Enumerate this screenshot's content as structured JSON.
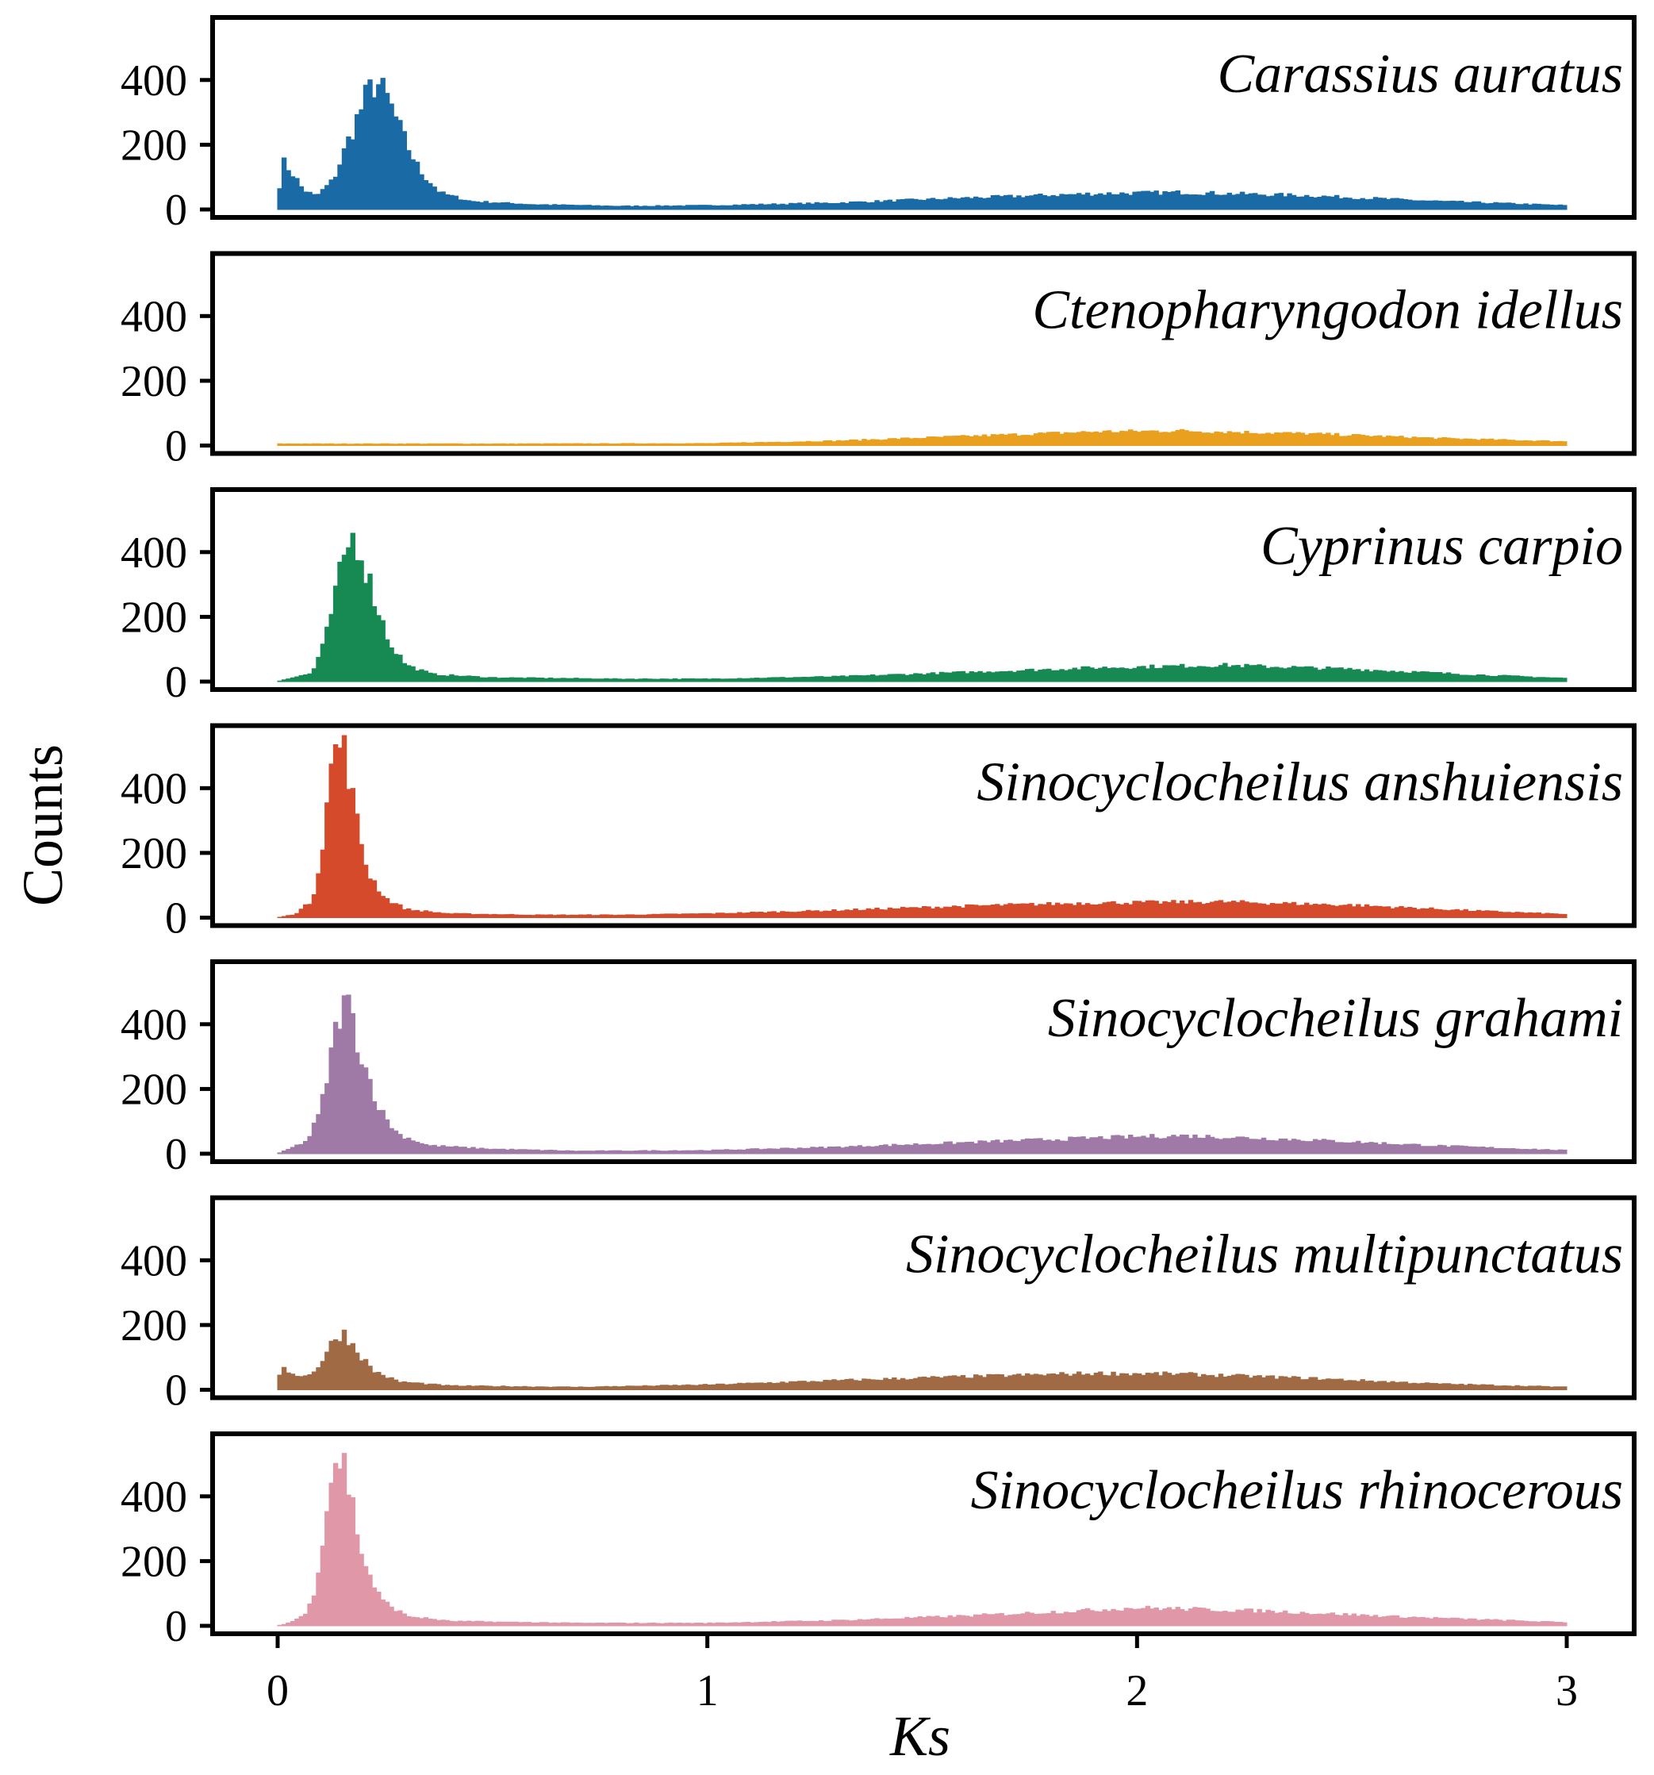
{
  "chart_data": {
    "type": "bar",
    "layout": "small-multiples",
    "xlabel": "Ks",
    "ylabel": "Counts",
    "xlim": [
      0,
      3
    ],
    "xticks": [
      0,
      1,
      2,
      3
    ],
    "yticks": [
      0,
      200,
      400
    ],
    "ylim": [
      0,
      560
    ],
    "bin_width": 0.01,
    "grid": false,
    "legend": "none",
    "panels": [
      {
        "name": "Carassius auratus",
        "color": "#1a6aa6",
        "profile": [
          [
            0,
            0
          ],
          [
            0.01,
            150
          ],
          [
            0.03,
            120
          ],
          [
            0.06,
            60
          ],
          [
            0.09,
            40
          ],
          [
            0.13,
            90
          ],
          [
            0.17,
            230
          ],
          [
            0.21,
            360
          ],
          [
            0.23,
            395
          ],
          [
            0.26,
            330
          ],
          [
            0.29,
            230
          ],
          [
            0.33,
            120
          ],
          [
            0.38,
            50
          ],
          [
            0.45,
            25
          ],
          [
            0.6,
            15
          ],
          [
            0.8,
            10
          ],
          [
            1.0,
            12
          ],
          [
            1.3,
            20
          ],
          [
            1.6,
            35
          ],
          [
            1.9,
            48
          ],
          [
            2.1,
            52
          ],
          [
            2.4,
            42
          ],
          [
            2.7,
            25
          ],
          [
            3.0,
            12
          ]
        ]
      },
      {
        "name": "Ctenopharyngodon idellus",
        "color": "#e8a01e",
        "profile": [
          [
            0,
            5
          ],
          [
            0.5,
            5
          ],
          [
            1.0,
            6
          ],
          [
            1.3,
            14
          ],
          [
            1.6,
            28
          ],
          [
            1.9,
            42
          ],
          [
            2.1,
            45
          ],
          [
            2.4,
            36
          ],
          [
            2.7,
            22
          ],
          [
            3.0,
            12
          ]
        ]
      },
      {
        "name": "Cyprinus carpio",
        "color": "#178a54",
        "profile": [
          [
            0,
            0
          ],
          [
            0.02,
            8
          ],
          [
            0.08,
            25
          ],
          [
            0.11,
            120
          ],
          [
            0.14,
            300
          ],
          [
            0.17,
            450
          ],
          [
            0.19,
            420
          ],
          [
            0.22,
            280
          ],
          [
            0.26,
            120
          ],
          [
            0.3,
            50
          ],
          [
            0.36,
            22
          ],
          [
            0.5,
            12
          ],
          [
            0.8,
            8
          ],
          [
            1.0,
            8
          ],
          [
            1.3,
            15
          ],
          [
            1.6,
            28
          ],
          [
            1.9,
            42
          ],
          [
            2.2,
            50
          ],
          [
            2.5,
            38
          ],
          [
            2.8,
            20
          ],
          [
            3.0,
            10
          ]
        ]
      },
      {
        "name": "Sinocyclocheilus anshuiensis",
        "color": "#d44a2a",
        "profile": [
          [
            0,
            0
          ],
          [
            0.04,
            10
          ],
          [
            0.08,
            50
          ],
          [
            0.1,
            180
          ],
          [
            0.12,
            420
          ],
          [
            0.14,
            550
          ],
          [
            0.16,
            500
          ],
          [
            0.18,
            320
          ],
          [
            0.21,
            140
          ],
          [
            0.25,
            60
          ],
          [
            0.3,
            25
          ],
          [
            0.4,
            12
          ],
          [
            0.6,
            8
          ],
          [
            0.8,
            8
          ],
          [
            1.0,
            12
          ],
          [
            1.3,
            22
          ],
          [
            1.6,
            35
          ],
          [
            1.9,
            45
          ],
          [
            2.2,
            48
          ],
          [
            2.5,
            38
          ],
          [
            2.8,
            20
          ],
          [
            3.0,
            10
          ]
        ]
      },
      {
        "name": "Sinocyclocheilus grahami",
        "color": "#a07aa6",
        "profile": [
          [
            0,
            0
          ],
          [
            0.02,
            10
          ],
          [
            0.07,
            40
          ],
          [
            0.1,
            130
          ],
          [
            0.13,
            340
          ],
          [
            0.15,
            470
          ],
          [
            0.17,
            440
          ],
          [
            0.2,
            280
          ],
          [
            0.24,
            130
          ],
          [
            0.28,
            60
          ],
          [
            0.35,
            25
          ],
          [
            0.5,
            14
          ],
          [
            0.7,
            8
          ],
          [
            1.0,
            10
          ],
          [
            1.3,
            20
          ],
          [
            1.6,
            34
          ],
          [
            1.9,
            48
          ],
          [
            2.1,
            55
          ],
          [
            2.4,
            42
          ],
          [
            2.7,
            24
          ],
          [
            3.0,
            10
          ]
        ]
      },
      {
        "name": "Sinocyclocheilus multipunctatus",
        "color": "#a06a45",
        "profile": [
          [
            0,
            0
          ],
          [
            0.01,
            80
          ],
          [
            0.03,
            50
          ],
          [
            0.07,
            40
          ],
          [
            0.1,
            80
          ],
          [
            0.13,
            150
          ],
          [
            0.15,
            180
          ],
          [
            0.18,
            130
          ],
          [
            0.22,
            60
          ],
          [
            0.28,
            25
          ],
          [
            0.4,
            12
          ],
          [
            0.7,
            8
          ],
          [
            1.0,
            15
          ],
          [
            1.3,
            28
          ],
          [
            1.6,
            40
          ],
          [
            1.9,
            50
          ],
          [
            2.1,
            48
          ],
          [
            2.4,
            35
          ],
          [
            2.7,
            18
          ],
          [
            3.0,
            8
          ]
        ]
      },
      {
        "name": "Sinocyclocheilus rhinocerous",
        "color": "#e097a8",
        "profile": [
          [
            0,
            0
          ],
          [
            0.03,
            10
          ],
          [
            0.07,
            40
          ],
          [
            0.09,
            130
          ],
          [
            0.11,
            330
          ],
          [
            0.13,
            500
          ],
          [
            0.15,
            530
          ],
          [
            0.17,
            400
          ],
          [
            0.2,
            200
          ],
          [
            0.24,
            80
          ],
          [
            0.3,
            30
          ],
          [
            0.4,
            14
          ],
          [
            0.7,
            8
          ],
          [
            1.0,
            8
          ],
          [
            1.3,
            16
          ],
          [
            1.6,
            30
          ],
          [
            1.9,
            48
          ],
          [
            2.0,
            55
          ],
          [
            2.3,
            45
          ],
          [
            2.6,
            28
          ],
          [
            3.0,
            10
          ]
        ]
      }
    ]
  }
}
